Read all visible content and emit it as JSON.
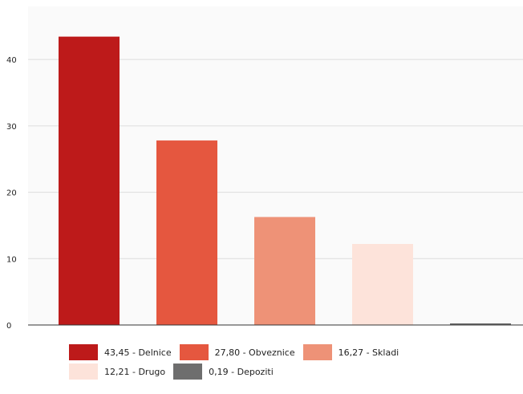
{
  "chart_data": {
    "type": "bar",
    "categories": [
      "Delnice",
      "Obveznice",
      "Skladi",
      "Drugo",
      "Depoziti"
    ],
    "values": [
      43.45,
      27.8,
      16.27,
      12.21,
      0.19
    ],
    "colors": [
      "#bd1a1a",
      "#e5573f",
      "#ee9277",
      "#fde3da",
      "#6e6e6e"
    ],
    "yticks": [
      0,
      10,
      20,
      30,
      40
    ],
    "ylim": [
      0,
      48
    ],
    "grid": true,
    "legend_position": "bottom",
    "legend": [
      {
        "label": "43,45 - Delnice",
        "color": "#bd1a1a"
      },
      {
        "label": "27,80 - Obveznice",
        "color": "#e5573f"
      },
      {
        "label": "16,27 - Skladi",
        "color": "#ee9277"
      },
      {
        "label": "12,21 - Drugo",
        "color": "#fde3da"
      },
      {
        "label": "0,19 - Depoziti",
        "color": "#6e6e6e"
      }
    ]
  }
}
